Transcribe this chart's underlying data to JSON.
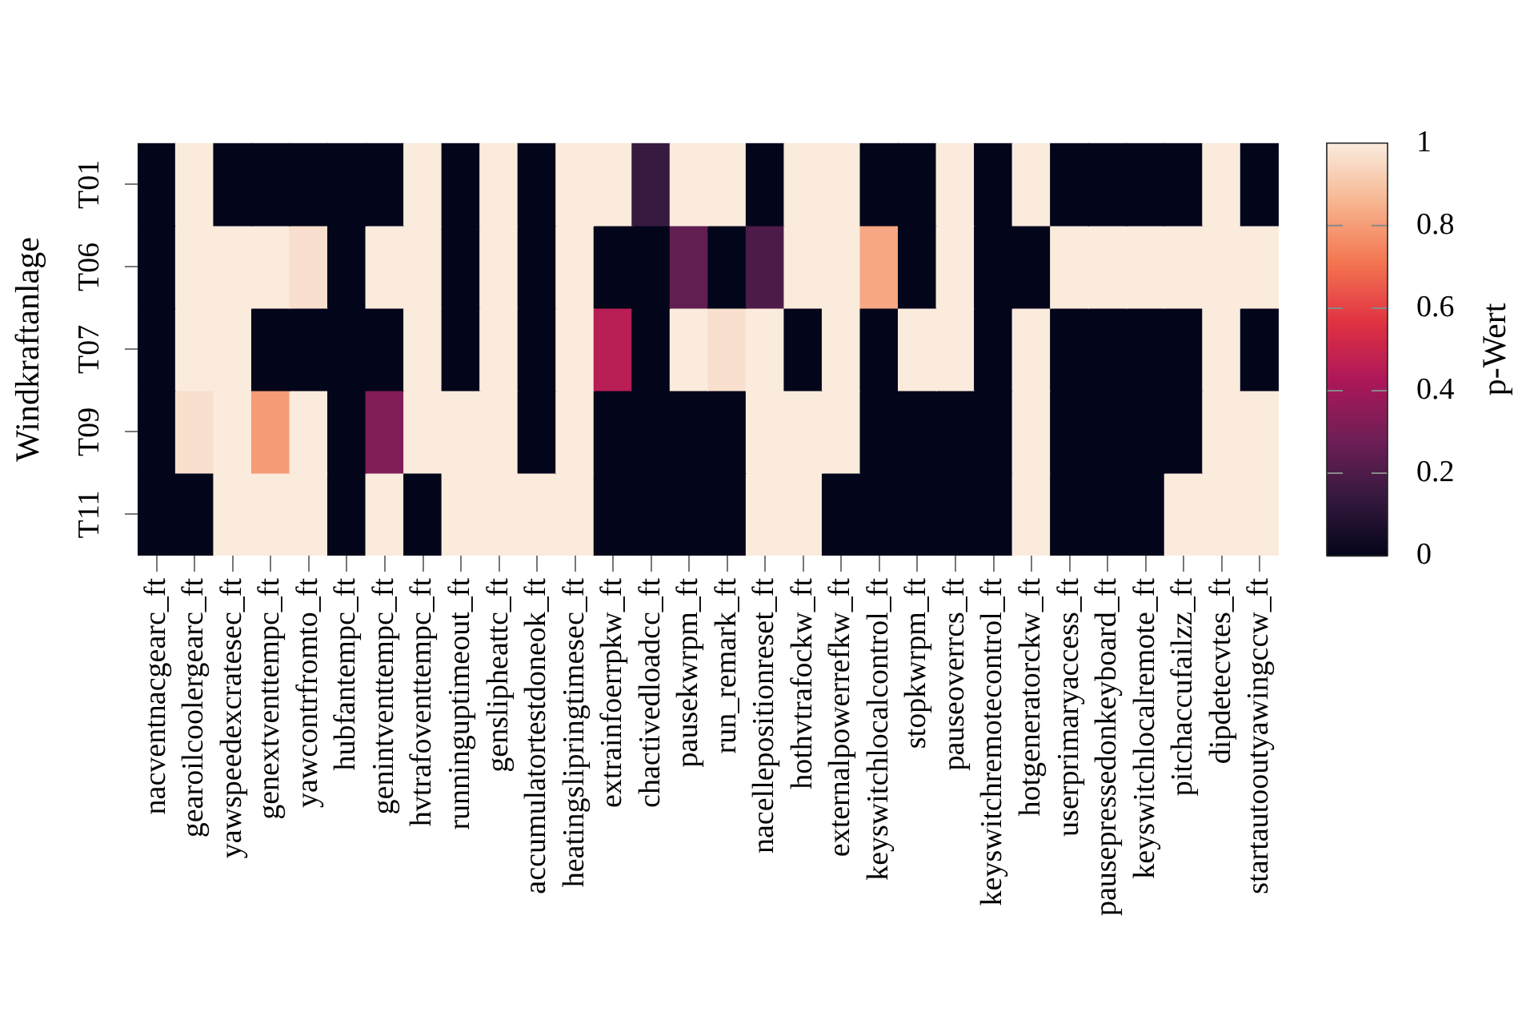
{
  "chart_data": {
    "type": "heatmap",
    "ylabel": "Windkraftanlage",
    "clabel": "p-Wert",
    "categories": [
      "nacventnacgearc_ft",
      "gearoilcoolergearc_ft",
      "yawspeedexcratesec_ft",
      "genextventtempc_ft",
      "yawcontrfromto_ft",
      "hubfantempc_ft",
      "genintventtempc_ft",
      "hvtrafoventtempc_ft",
      "runninguptimeout_ft",
      "genslipheattc_ft",
      "accumulatortestdoneok_ft",
      "heatingslipringtimesec_ft",
      "extrainfoerrpkw_ft",
      "chactivedloadcc_ft",
      "pausekwrpm_ft",
      "run_remark_ft",
      "nacellepositionreset_ft",
      "hothvtrafockw_ft",
      "externalpowerrefkw_ft",
      "keyswitchlocalcontrol_ft",
      "stopkwrpm_ft",
      "pauseoverrcs_ft",
      "keyswitchremotecontrol_ft",
      "hotgeneratorckw_ft",
      "userprimaryaccess_ft",
      "pausepressedonkeyboard_ft",
      "keyswitchlocalremote_ft",
      "pitchaccufailzz_ft",
      "dipdetecvtes_ft",
      "startautooutyawingccw_ft"
    ],
    "y_categories": [
      "T01",
      "T06",
      "T07",
      "T09",
      "T11"
    ],
    "cells": [
      [
        0,
        1,
        0,
        0,
        0,
        0,
        0,
        1,
        0,
        1,
        0,
        1,
        1,
        0.15,
        1,
        1,
        0,
        1,
        1,
        0,
        0,
        1,
        0,
        1,
        0,
        0,
        0,
        0,
        1,
        0
      ],
      [
        0,
        1,
        1,
        1,
        0.97,
        0,
        1,
        1,
        0,
        1,
        0,
        1,
        0,
        0,
        0.25,
        0,
        0.2,
        1,
        1,
        0.83,
        0,
        1,
        0,
        0,
        1,
        1,
        1,
        1,
        1,
        1
      ],
      [
        0,
        1,
        1,
        0,
        0,
        0,
        0,
        1,
        0,
        1,
        0,
        1,
        0.46,
        0,
        1,
        0.97,
        1,
        0,
        1,
        0,
        1,
        1,
        0,
        1,
        0,
        0,
        0,
        0,
        1,
        0
      ],
      [
        0,
        0.97,
        1,
        0.8,
        1,
        0,
        0.33,
        1,
        1,
        1,
        0,
        1,
        0,
        0,
        0,
        0,
        1,
        1,
        1,
        0,
        0,
        0,
        0,
        1,
        0,
        0,
        0,
        0,
        1,
        1
      ],
      [
        0,
        0,
        1,
        1,
        1,
        0,
        1,
        0,
        1,
        1,
        1,
        1,
        0,
        0,
        0,
        0,
        1,
        1,
        0,
        0,
        0,
        0,
        0,
        1,
        0,
        0,
        0,
        1,
        1,
        1
      ]
    ],
    "clim": [
      0,
      1
    ],
    "cticks": [
      0,
      0.2,
      0.4,
      0.6,
      0.8,
      1
    ]
  }
}
